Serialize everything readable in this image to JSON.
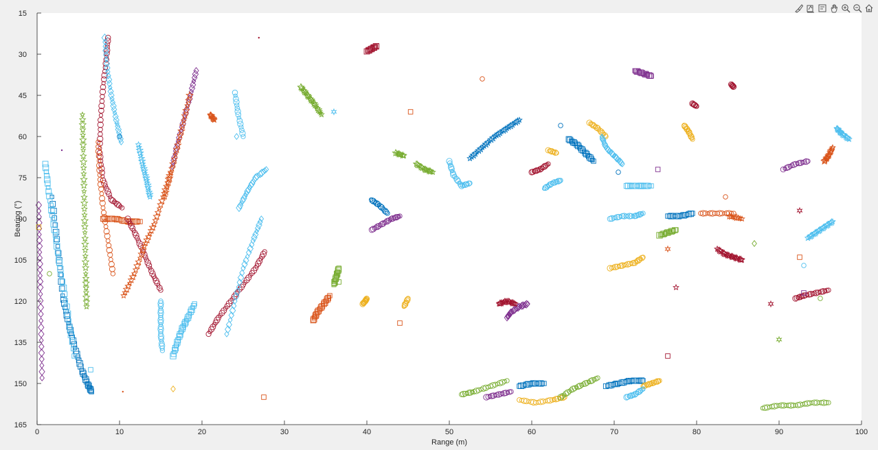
{
  "toolbar": {
    "icons": [
      "brush-icon",
      "datatip-icon",
      "restore-view-icon",
      "pan-icon",
      "zoom-in-icon",
      "zoom-out-icon",
      "home-icon"
    ]
  },
  "chart_data": {
    "type": "scatter",
    "title": "",
    "xlabel": "Range (m)",
    "ylabel": "Bearing (°)",
    "xlim": [
      0,
      100
    ],
    "ylim": [
      15,
      165
    ],
    "y_reversed": true,
    "grid": false,
    "xticks": [
      0,
      10,
      20,
      30,
      40,
      50,
      60,
      70,
      80,
      90,
      100
    ],
    "yticks": [
      15,
      30,
      45,
      60,
      75,
      90,
      105,
      120,
      135,
      150,
      165
    ],
    "colors": [
      "#0072BD",
      "#D95319",
      "#EDB120",
      "#7E2F8E",
      "#77AC30",
      "#4DBEEE",
      "#A2142F"
    ],
    "markers": [
      "circle",
      "square",
      "diamond",
      "star",
      "hexagram",
      "dot"
    ],
    "tracks": [
      {
        "color": 0,
        "marker": "square",
        "x": [
          1.8,
          2.5,
          3.1,
          3.8,
          4.6,
          5.4,
          6.1,
          6.6
        ],
        "y": [
          82,
          100,
          118,
          128,
          137,
          145,
          150,
          153
        ]
      },
      {
        "color": 5,
        "marker": "square",
        "x": [
          1.0,
          1.4,
          2.0,
          2.7,
          3.6,
          4.5
        ],
        "y": [
          70,
          80,
          92,
          106,
          122,
          140
        ]
      },
      {
        "color": 3,
        "marker": "diamond",
        "x": [
          0.2,
          0.3,
          0.4,
          0.5,
          0.6
        ],
        "y": [
          85,
          100,
          115,
          132,
          148
        ]
      },
      {
        "color": 4,
        "marker": "star",
        "x": [
          5.5,
          5.6,
          5.7,
          5.8,
          5.9,
          6.0
        ],
        "y": [
          52,
          65,
          80,
          95,
          110,
          122
        ]
      },
      {
        "color": 6,
        "marker": "circle",
        "x": [
          8.6,
          8.4,
          8.0,
          7.7,
          7.6,
          8.0,
          9.0,
          10.3
        ],
        "y": [
          24,
          32,
          42,
          54,
          66,
          76,
          83,
          86
        ]
      },
      {
        "color": 5,
        "marker": "diamond",
        "x": [
          8.2,
          8.5,
          9.0,
          9.6,
          10.2
        ],
        "y": [
          24,
          35,
          45,
          54,
          62
        ]
      },
      {
        "color": 1,
        "marker": "circle",
        "x": [
          7.4,
          7.6,
          8.0,
          8.6,
          9.2
        ],
        "y": [
          62,
          74,
          86,
          98,
          110
        ]
      },
      {
        "color": 1,
        "marker": "square",
        "x": [
          8.0,
          9.5,
          11.0,
          12.5
        ],
        "y": [
          90,
          90,
          91,
          91
        ]
      },
      {
        "color": 6,
        "marker": "circle",
        "x": [
          11.0,
          12.0,
          13.0,
          14.0,
          15.0
        ],
        "y": [
          90,
          96,
          103,
          110,
          116
        ]
      },
      {
        "color": 1,
        "marker": "star",
        "x": [
          10.5,
          11.8,
          13.0,
          14.2,
          15.3,
          16.2
        ],
        "y": [
          118,
          110,
          100,
          92,
          82,
          73
        ]
      },
      {
        "color": 3,
        "marker": "diamond",
        "x": [
          19.3,
          18.6,
          17.8,
          17.0,
          16.4
        ],
        "y": [
          36,
          45,
          54,
          63,
          71
        ]
      },
      {
        "color": 1,
        "marker": "star",
        "x": [
          18.5,
          17.5,
          16.5,
          15.5
        ],
        "y": [
          45,
          58,
          70,
          82
        ]
      },
      {
        "color": 5,
        "marker": "star",
        "x": [
          12.3,
          12.8,
          13.3,
          13.7
        ],
        "y": [
          63,
          70,
          76,
          82
        ]
      },
      {
        "color": 5,
        "marker": "circle",
        "x": [
          15.0,
          15.0,
          15.0,
          15.2
        ],
        "y": [
          120,
          126,
          132,
          138
        ]
      },
      {
        "color": 5,
        "marker": "square",
        "x": [
          16.5,
          17.0,
          17.6,
          18.3,
          19.1
        ],
        "y": [
          140,
          135,
          130,
          126,
          121
        ]
      },
      {
        "color": 6,
        "marker": "circle",
        "x": [
          20.8,
          22.0,
          23.5,
          25.0,
          26.5,
          27.6
        ],
        "y": [
          132,
          126,
          120,
          114,
          108,
          102
        ]
      },
      {
        "color": 5,
        "marker": "diamond",
        "x": [
          23.0,
          24.0,
          25.0,
          26.2,
          27.2
        ],
        "y": [
          132,
          120,
          108,
          98,
          90
        ]
      },
      {
        "color": 5,
        "marker": "diamond",
        "x": [
          24.5,
          25.5,
          26.5,
          27.8
        ],
        "y": [
          86,
          80,
          75,
          72
        ]
      },
      {
        "color": 5,
        "marker": "circle",
        "x": [
          24.0,
          24.4,
          25.0
        ],
        "y": [
          44,
          52,
          60
        ]
      },
      {
        "color": 1,
        "marker": "star",
        "x": [
          21.0,
          21.5
        ],
        "y": [
          52,
          54
        ]
      },
      {
        "color": 4,
        "marker": "star",
        "x": [
          32.0,
          32.8,
          33.6,
          34.5
        ],
        "y": [
          42,
          45,
          48,
          52
        ]
      },
      {
        "color": 6,
        "marker": "square",
        "x": [
          40.0,
          40.6,
          41.2
        ],
        "y": [
          29,
          28,
          27
        ]
      },
      {
        "color": 0,
        "marker": "circle",
        "x": [
          40.5,
          41.5,
          42.5
        ],
        "y": [
          83,
          85,
          88
        ]
      },
      {
        "color": 3,
        "marker": "circle",
        "x": [
          40.6,
          41.8,
          43.0,
          44.0
        ],
        "y": [
          94,
          92,
          90,
          89
        ]
      },
      {
        "color": 4,
        "marker": "star",
        "x": [
          43.5,
          44.5
        ],
        "y": [
          66,
          67
        ]
      },
      {
        "color": 2,
        "marker": "circle",
        "x": [
          44.5,
          45.0
        ],
        "y": [
          122,
          119
        ]
      },
      {
        "color": 1,
        "marker": "square",
        "x": [
          33.5,
          34.0,
          34.8,
          35.5
        ],
        "y": [
          127,
          124,
          121,
          118
        ]
      },
      {
        "color": 2,
        "marker": "circle",
        "x": [
          39.5,
          39.8,
          40.0
        ],
        "y": [
          121,
          120,
          119
        ]
      },
      {
        "color": 4,
        "marker": "square",
        "x": [
          36.0,
          36.3,
          36.6
        ],
        "y": [
          114,
          111,
          108
        ]
      },
      {
        "color": 4,
        "marker": "star",
        "x": [
          46.0,
          47.0,
          48.0
        ],
        "y": [
          70,
          72,
          73
        ]
      },
      {
        "color": 5,
        "marker": "circle",
        "x": [
          50.0,
          50.5,
          51.5,
          52.5
        ],
        "y": [
          69,
          74,
          78,
          77
        ]
      },
      {
        "color": 0,
        "marker": "star",
        "x": [
          52.5,
          54.0,
          55.5,
          57.0,
          58.5
        ],
        "y": [
          68,
          64,
          60,
          57,
          54
        ]
      },
      {
        "color": 4,
        "marker": "circle",
        "x": [
          51.5,
          53.0,
          55.0,
          57.0
        ],
        "y": [
          154,
          153,
          151,
          149
        ]
      },
      {
        "color": 3,
        "marker": "circle",
        "x": [
          54.5,
          56.0,
          57.5
        ],
        "y": [
          155,
          154,
          153
        ]
      },
      {
        "color": 2,
        "marker": "circle",
        "x": [
          58.5,
          60.5,
          62.5,
          64.0
        ],
        "y": [
          156,
          157,
          156,
          155
        ]
      },
      {
        "color": 0,
        "marker": "square",
        "x": [
          58.5,
          60.0,
          61.5
        ],
        "y": [
          151,
          150,
          150
        ]
      },
      {
        "color": 4,
        "marker": "circle",
        "x": [
          63.5,
          65.0,
          66.5,
          68.0
        ],
        "y": [
          155,
          152,
          150,
          148
        ]
      },
      {
        "color": 0,
        "marker": "square",
        "x": [
          69.0,
          70.5,
          72.0,
          73.5
        ],
        "y": [
          151,
          150,
          149,
          149
        ]
      },
      {
        "color": 2,
        "marker": "circle",
        "x": [
          73.5,
          74.5,
          75.5
        ],
        "y": [
          151,
          150,
          149
        ]
      },
      {
        "color": 5,
        "marker": "circle",
        "x": [
          71.5,
          72.5,
          73.5
        ],
        "y": [
          155,
          154,
          152
        ]
      },
      {
        "color": 3,
        "marker": "diamond",
        "x": [
          57.0,
          57.5,
          58.5,
          59.5
        ],
        "y": [
          126,
          124,
          122,
          121
        ]
      },
      {
        "color": 6,
        "marker": "star",
        "x": [
          56.0,
          57.0,
          58.0
        ],
        "y": [
          121,
          120,
          121
        ]
      },
      {
        "color": 6,
        "marker": "circle",
        "x": [
          60.0,
          61.0,
          62.0
        ],
        "y": [
          73,
          72,
          70
        ]
      },
      {
        "color": 2,
        "marker": "circle",
        "x": [
          62.0,
          63.0
        ],
        "y": [
          65,
          66
        ]
      },
      {
        "color": 5,
        "marker": "circle",
        "x": [
          61.5,
          62.5,
          63.5
        ],
        "y": [
          79,
          77,
          76
        ]
      },
      {
        "color": 0,
        "marker": "square",
        "x": [
          64.5,
          65.5,
          66.5,
          67.5
        ],
        "y": [
          61,
          63,
          66,
          69
        ]
      },
      {
        "color": 2,
        "marker": "circle",
        "x": [
          67.0,
          68.0,
          69.0
        ],
        "y": [
          55,
          57,
          60
        ]
      },
      {
        "color": 5,
        "marker": "diamond",
        "x": [
          68.5,
          69.0,
          70.0,
          71.0
        ],
        "y": [
          60,
          64,
          67,
          70
        ]
      },
      {
        "color": 5,
        "marker": "circle",
        "x": [
          69.5,
          71.0,
          72.5,
          73.5
        ],
        "y": [
          90,
          89,
          89,
          88
        ]
      },
      {
        "color": 2,
        "marker": "circle",
        "x": [
          69.5,
          71.0,
          72.5,
          73.5
        ],
        "y": [
          108,
          107,
          106,
          104
        ]
      },
      {
        "color": 3,
        "marker": "square",
        "x": [
          72.5,
          73.5,
          74.5
        ],
        "y": [
          36,
          37,
          38
        ]
      },
      {
        "color": 5,
        "marker": "square",
        "x": [
          71.5,
          73.0,
          74.5
        ],
        "y": [
          78,
          78,
          78
        ]
      },
      {
        "color": 4,
        "marker": "square",
        "x": [
          75.5,
          76.5,
          77.5
        ],
        "y": [
          96,
          95,
          94
        ]
      },
      {
        "color": 0,
        "marker": "square",
        "x": [
          76.5,
          78.0,
          79.5
        ],
        "y": [
          89,
          89,
          88
        ]
      },
      {
        "color": 2,
        "marker": "circle",
        "x": [
          78.5,
          79.0,
          79.5
        ],
        "y": [
          56,
          58,
          61
        ]
      },
      {
        "color": 6,
        "marker": "circle",
        "x": [
          79.5,
          80.0
        ],
        "y": [
          48,
          49
        ]
      },
      {
        "color": 6,
        "marker": "star",
        "x": [
          82.5,
          83.5,
          84.5,
          85.5
        ],
        "y": [
          101,
          103,
          104,
          105
        ]
      },
      {
        "color": 1,
        "marker": "circle",
        "x": [
          80.5,
          82.5,
          84.5
        ],
        "y": [
          88,
          88,
          88
        ]
      },
      {
        "color": 6,
        "marker": "circle",
        "x": [
          92.0,
          93.0,
          94.5,
          96.0
        ],
        "y": [
          119,
          118,
          117,
          116
        ]
      },
      {
        "color": 5,
        "marker": "star",
        "x": [
          93.5,
          94.5,
          95.5,
          96.5
        ],
        "y": [
          97,
          95,
          93,
          91
        ]
      },
      {
        "color": 5,
        "marker": "star",
        "x": [
          97.0,
          97.6,
          98.5
        ],
        "y": [
          57,
          59,
          61
        ]
      },
      {
        "color": 1,
        "marker": "star",
        "x": [
          95.5,
          96.0,
          96.5
        ],
        "y": [
          69,
          67,
          64
        ]
      },
      {
        "color": 3,
        "marker": "circle",
        "x": [
          90.5,
          92.0,
          93.5
        ],
        "y": [
          72,
          70,
          69
        ]
      },
      {
        "color": 4,
        "marker": "circle",
        "x": [
          88.0,
          90.0,
          92.0,
          94.0,
          96.0
        ],
        "y": [
          159,
          158,
          158,
          157,
          157
        ]
      },
      {
        "color": 1,
        "marker": "star",
        "x": [
          84.0,
          85.5
        ],
        "y": [
          89,
          90
        ]
      },
      {
        "color": 6,
        "marker": "circle",
        "x": [
          84.2,
          84.5
        ],
        "y": [
          41,
          42
        ]
      }
    ],
    "scatter_points": [
      {
        "color": 6,
        "marker": "dot",
        "x": 26.9,
        "y": 24
      },
      {
        "color": 3,
        "marker": "dot",
        "x": 3.0,
        "y": 65
      },
      {
        "color": 0,
        "marker": "circle",
        "x": 10.0,
        "y": 60
      },
      {
        "color": 1,
        "marker": "circle",
        "x": 54.0,
        "y": 39
      },
      {
        "color": 1,
        "marker": "square",
        "x": 45.3,
        "y": 51
      },
      {
        "color": 5,
        "marker": "hexagram",
        "x": 36.0,
        "y": 51
      },
      {
        "color": 5,
        "marker": "diamond",
        "x": 24.2,
        "y": 60
      },
      {
        "color": 1,
        "marker": "square",
        "x": 44.0,
        "y": 128
      },
      {
        "color": 1,
        "marker": "square",
        "x": 27.5,
        "y": 155
      },
      {
        "color": 5,
        "marker": "square",
        "x": 6.5,
        "y": 145
      },
      {
        "color": 2,
        "marker": "diamond",
        "x": 16.5,
        "y": 152
      },
      {
        "color": 1,
        "marker": "dot",
        "x": 10.4,
        "y": 153
      },
      {
        "color": 2,
        "marker": "square",
        "x": 0.2,
        "y": 93
      },
      {
        "color": 4,
        "marker": "circle",
        "x": 1.5,
        "y": 110
      },
      {
        "color": 4,
        "marker": "square",
        "x": 36.6,
        "y": 113
      },
      {
        "color": 0,
        "marker": "circle",
        "x": 63.5,
        "y": 56
      },
      {
        "color": 1,
        "marker": "hexagram",
        "x": 76.5,
        "y": 101
      },
      {
        "color": 6,
        "marker": "star",
        "x": 77.5,
        "y": 115
      },
      {
        "color": 3,
        "marker": "square",
        "x": 93.0,
        "y": 117
      },
      {
        "color": 4,
        "marker": "circle",
        "x": 95.0,
        "y": 119
      },
      {
        "color": 6,
        "marker": "hexagram",
        "x": 89.0,
        "y": 121
      },
      {
        "color": 1,
        "marker": "square",
        "x": 92.5,
        "y": 104
      },
      {
        "color": 6,
        "marker": "hexagram",
        "x": 92.5,
        "y": 87
      },
      {
        "color": 5,
        "marker": "circle",
        "x": 93.0,
        "y": 107
      },
      {
        "color": 4,
        "marker": "hexagram",
        "x": 90.0,
        "y": 134
      },
      {
        "color": 6,
        "marker": "square",
        "x": 76.5,
        "y": 140
      },
      {
        "color": 1,
        "marker": "circle",
        "x": 83.5,
        "y": 82
      },
      {
        "color": 4,
        "marker": "diamond",
        "x": 87.0,
        "y": 99
      },
      {
        "color": 3,
        "marker": "square",
        "x": 75.3,
        "y": 72
      },
      {
        "color": 0,
        "marker": "circle",
        "x": 70.5,
        "y": 73
      }
    ]
  }
}
